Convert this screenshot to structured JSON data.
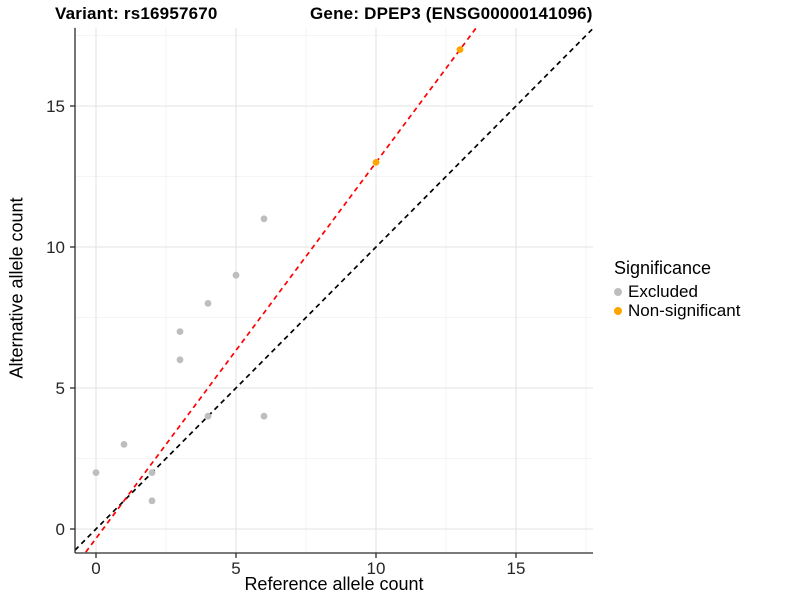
{
  "chart_data": {
    "type": "scatter",
    "title_left": "Variant: rs16957670",
    "title_right": "Gene: DPEP3 (ENSG00000141096)",
    "xlabel": "Reference allele count",
    "ylabel": "Alternative allele count",
    "xlim": [
      -0.75,
      17.75
    ],
    "ylim": [
      -0.85,
      17.77
    ],
    "grid": "on",
    "x_ticks": {
      "values": [
        0,
        5,
        10,
        15
      ],
      "labels": [
        "0",
        "5",
        "10",
        "15"
      ]
    },
    "y_ticks": {
      "values": [
        0,
        5,
        10,
        15
      ],
      "labels": [
        "0",
        "5",
        "10",
        "15"
      ]
    },
    "x_minor_ticks": [
      2.5,
      7.5,
      12.5,
      17.5
    ],
    "y_minor_ticks": [
      2.5,
      7.5,
      12.5,
      17.5
    ],
    "series": [
      {
        "name": "Excluded",
        "color": "#bebebe",
        "points": [
          [
            0,
            2
          ],
          [
            1,
            3
          ],
          [
            2,
            1
          ],
          [
            2,
            2
          ],
          [
            3,
            6
          ],
          [
            3,
            7
          ],
          [
            4,
            4
          ],
          [
            4,
            8
          ],
          [
            5,
            9
          ],
          [
            6,
            4
          ],
          [
            6,
            11
          ]
        ]
      },
      {
        "name": "Non-significant",
        "color": "#ffa500",
        "points": [
          [
            10,
            13
          ],
          [
            13,
            17
          ]
        ]
      }
    ],
    "lines": [
      {
        "name": "identity-line",
        "color": "#000000",
        "slope": 1,
        "intercept": 0,
        "dash": "5,4"
      },
      {
        "name": "fit-line",
        "color": "#ff0000",
        "slope": 1.3333,
        "intercept": -0.3333,
        "dash": "5,4"
      }
    ],
    "legend": {
      "title": "Significance",
      "position": "right"
    }
  }
}
